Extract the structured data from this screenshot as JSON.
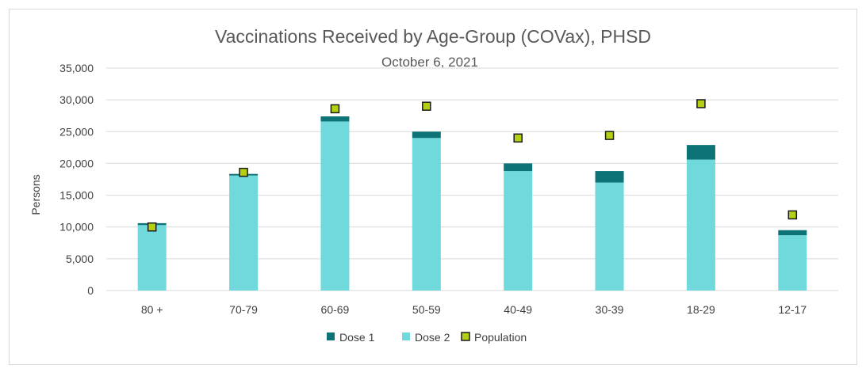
{
  "chart_data": {
    "type": "bar",
    "stacked": true,
    "title": "Vaccinations Received by Age-Group (COVax), PHSD",
    "subtitle": "October 6, 2021",
    "xlabel": "",
    "ylabel": "Persons",
    "ylim": [
      0,
      35000
    ],
    "yticks": [
      0,
      5000,
      10000,
      15000,
      20000,
      25000,
      30000,
      35000
    ],
    "ytick_labels": [
      "0",
      "5,000",
      "10,000",
      "15,000",
      "20,000",
      "25,000",
      "30,000",
      "35,000"
    ],
    "grid": true,
    "categories": [
      "80 +",
      "70-79",
      "60-69",
      "50-59",
      "40-49",
      "30-39",
      "18-29",
      "12-17"
    ],
    "series": [
      {
        "name": "Dose 2",
        "kind": "bar",
        "color": "#6fd9db",
        "values": [
          10300,
          18100,
          26600,
          24000,
          18800,
          17000,
          20600,
          8700
        ]
      },
      {
        "name": "Dose 1",
        "kind": "bar",
        "color": "#0d7377",
        "values": [
          300,
          250,
          800,
          1000,
          1200,
          1800,
          2300,
          800
        ]
      },
      {
        "name": "Population",
        "kind": "marker",
        "color": "#b5cf12",
        "values": [
          10000,
          18600,
          28600,
          29000,
          24000,
          24400,
          29400,
          11900
        ]
      }
    ],
    "legend": {
      "position": "bottom",
      "entries": [
        {
          "label": "Dose 1",
          "color": "#0d7377",
          "shape": "square"
        },
        {
          "label": "Dose 2",
          "color": "#6fd9db",
          "shape": "square"
        },
        {
          "label": "Population",
          "color": "#b5cf12",
          "shape": "marker"
        }
      ]
    }
  }
}
